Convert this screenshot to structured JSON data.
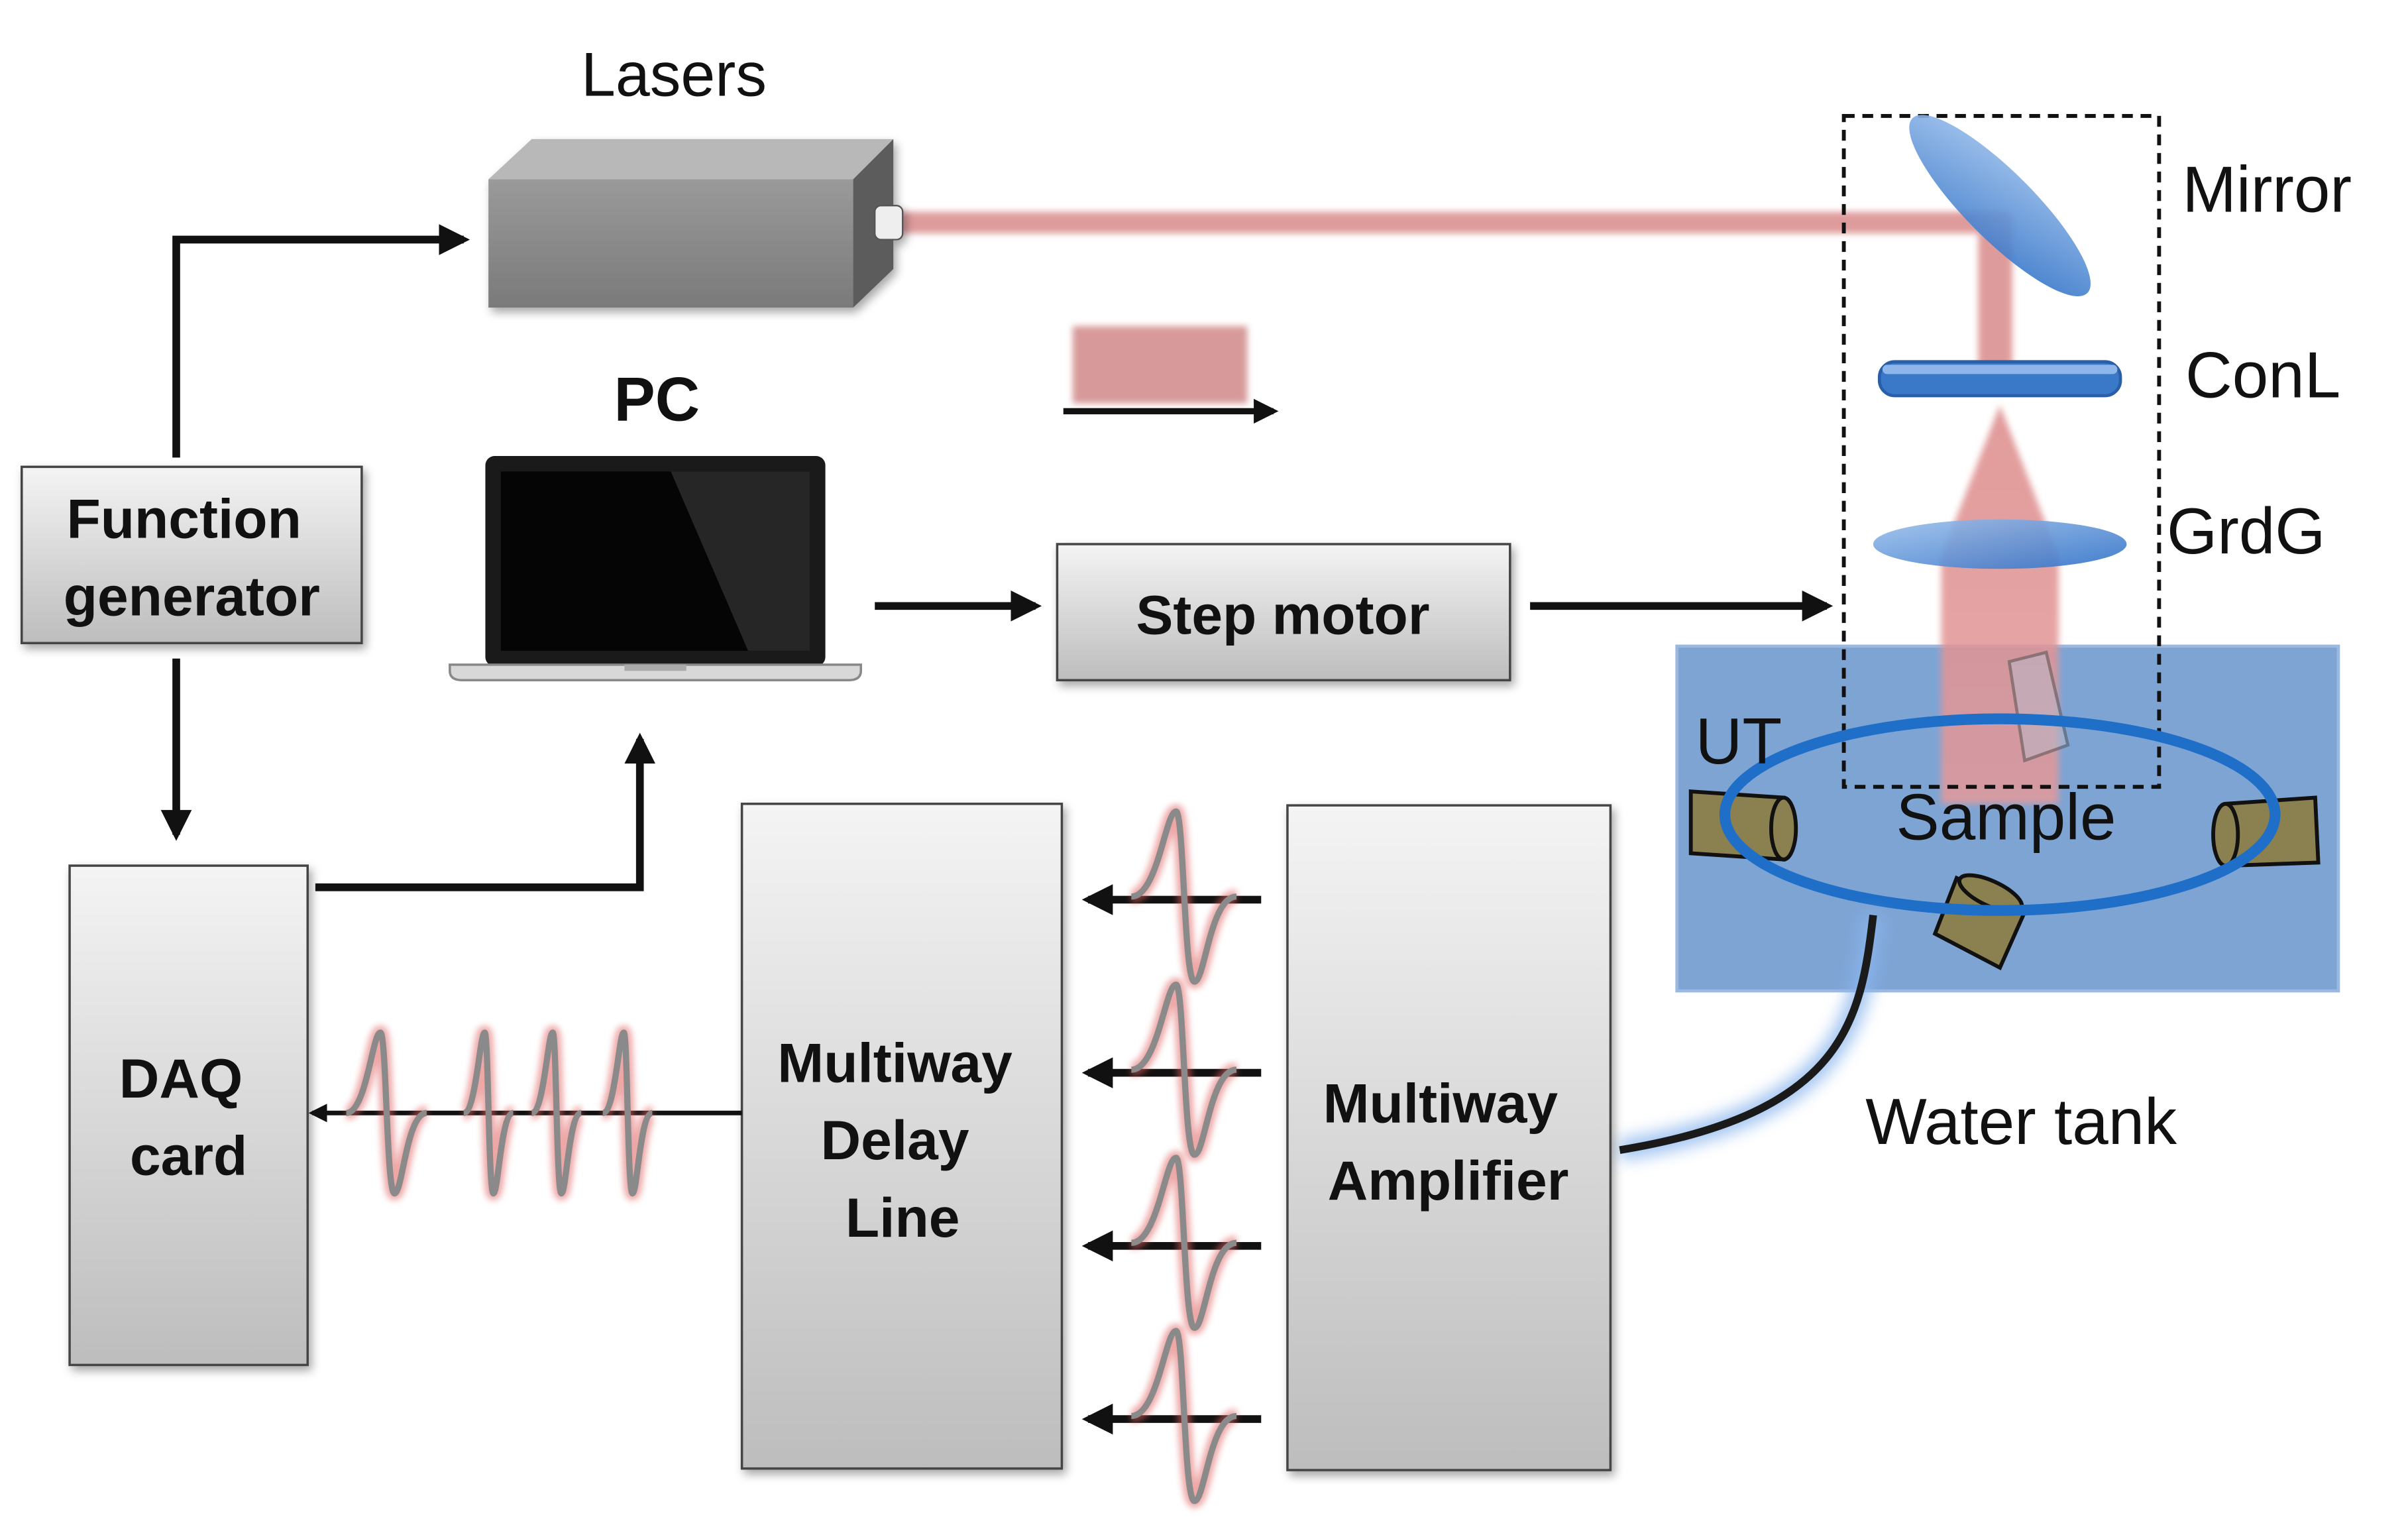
{
  "labels": {
    "lasers": "Lasers",
    "pc": "PC",
    "mirror": "Mirror",
    "conl": "ConL",
    "grdg": "GrdG",
    "ut": "UT",
    "sample": "Sample",
    "water_tank": "Water tank"
  },
  "blocks": {
    "function_generator": [
      "Function",
      "generator"
    ],
    "step_motor": "Step motor",
    "daq_card": [
      "DAQ",
      "card"
    ],
    "delay_line": [
      "Multiway",
      "Delay",
      "Line"
    ],
    "amplifier": [
      "Multiway",
      "Amplifier"
    ]
  },
  "colors": {
    "laser_beam": "#d98a8a",
    "block_fill_top": "#f4f4f4",
    "block_fill_bottom": "#bdbdbd",
    "water_tank": "#7ea4d4",
    "ring": "#1f6fc8",
    "transducer": "#8a8050",
    "signal": "#8a8a8a",
    "signal_glow": "#e06060"
  }
}
